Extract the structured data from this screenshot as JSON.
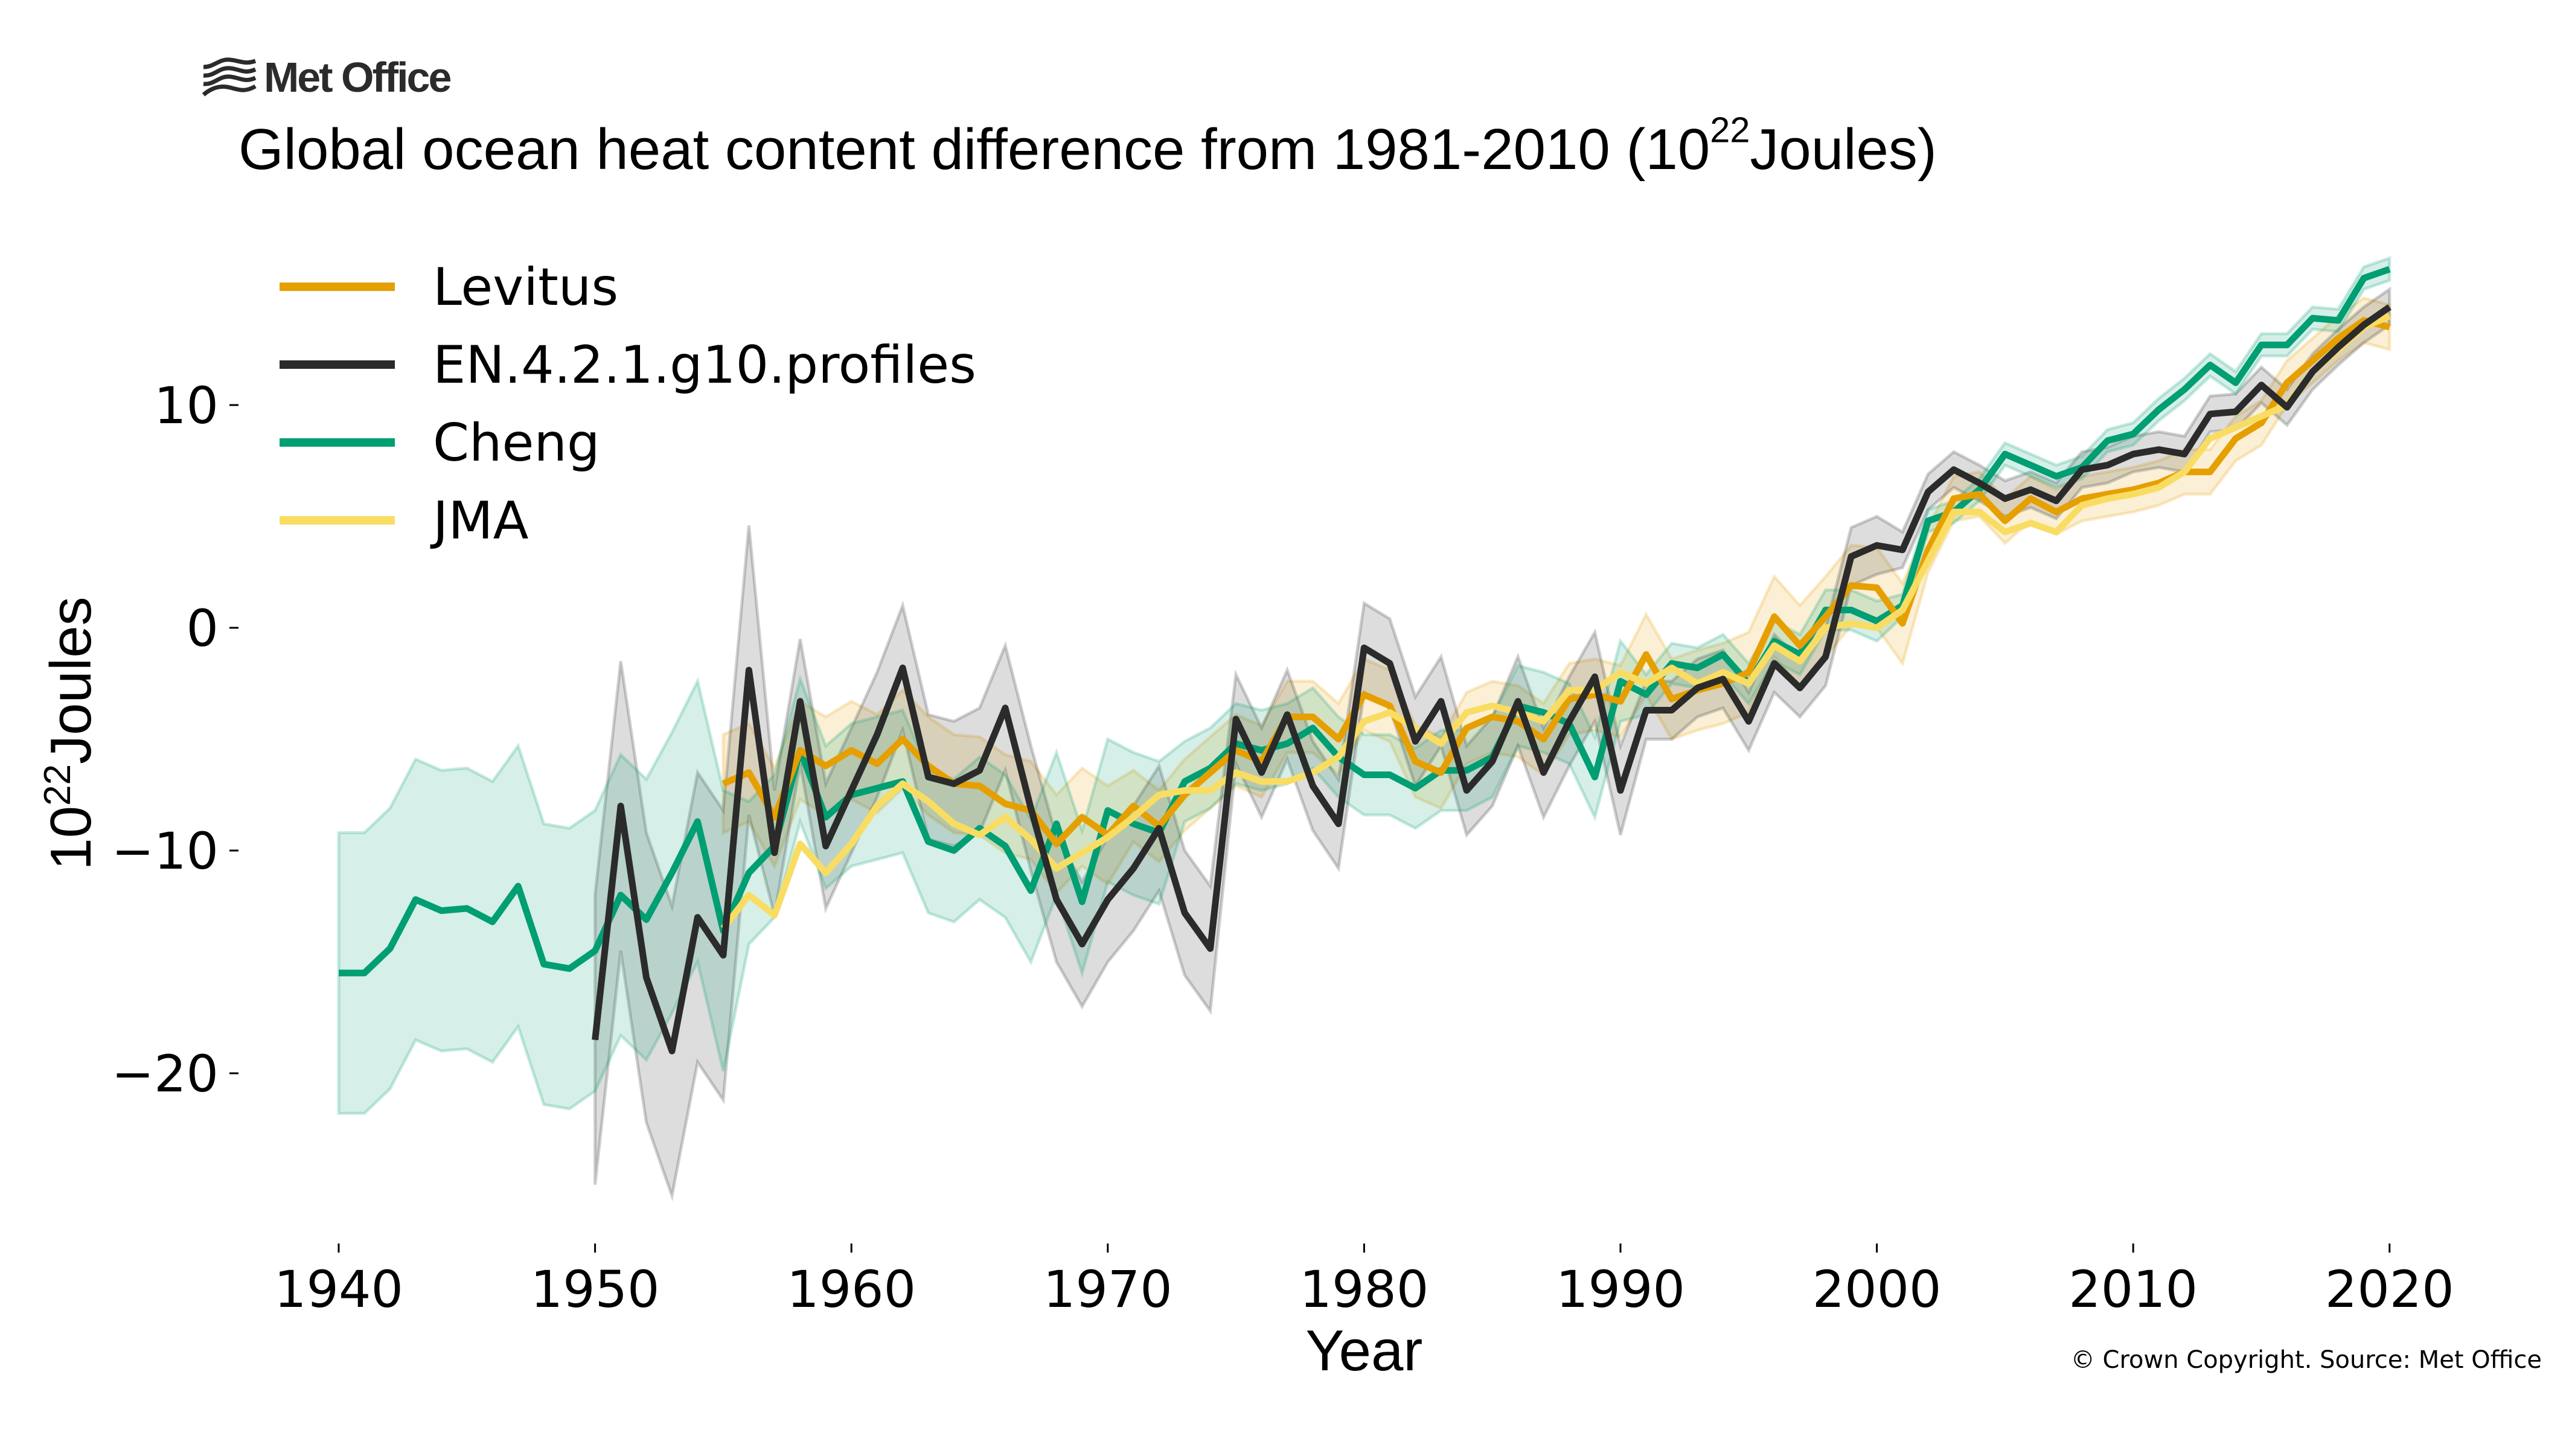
{
  "header": {
    "logo_text": "Met Office",
    "logo_icon": "met-office-waves-icon",
    "title_prefix": "Global ocean heat content difference from 1981-2010 (10",
    "title_exponent": "22",
    "title_suffix": "Joules)"
  },
  "footer": {
    "copyright": "© Crown Copyright. Source: Met Office"
  },
  "chart_data": {
    "type": "line",
    "title": "Global ocean heat content difference from 1981-2010 (10^22 Joules)",
    "xlabel": "Year",
    "ylabel_base": "10",
    "ylabel_exponent": "22",
    "ylabel_suffix": "Joules",
    "xlim": [
      1937,
      2023
    ],
    "ylim": [
      -27.5,
      17.5
    ],
    "xticks": [
      1940,
      1950,
      1960,
      1970,
      1980,
      1990,
      2000,
      2010,
      2020
    ],
    "xtick_labels": [
      "1940",
      "1950",
      "1960",
      "1970",
      "1980",
      "1990",
      "2000",
      "2010",
      "2020"
    ],
    "yticks": [
      10,
      0,
      -10,
      -20
    ],
    "ytick_labels": [
      "10",
      "0",
      "−10",
      "−20"
    ],
    "grid": false,
    "legend_position": "top-left",
    "series": [
      {
        "name": "Levitus",
        "color": "#e69f00",
        "start_year": 1955,
        "values": [
          -7.0,
          -6.5,
          -8.5,
          -5.5,
          -6.2,
          -5.5,
          -6.1,
          -5.0,
          -6.2,
          -7.0,
          -7.1,
          -7.9,
          -8.2,
          -9.7,
          -8.5,
          -9.3,
          -8.0,
          -8.9,
          -7.5,
          -6.5,
          -5.5,
          -6.0,
          -4.0,
          -4.0,
          -5.0,
          -3.0,
          -3.5,
          -6.0,
          -6.5,
          -4.5,
          -4.0,
          -4.2,
          -5.0,
          -3.2,
          -3.0,
          -3.3,
          -1.2,
          -3.2,
          -2.8,
          -2.5,
          -2.0,
          0.5,
          -0.8,
          0.5,
          1.9,
          1.8,
          0.2,
          3.5,
          5.8,
          6.0,
          4.8,
          5.8,
          5.2,
          5.8,
          6.0,
          6.2,
          6.5,
          7.0,
          7.0,
          8.5,
          9.2,
          11.0,
          12.0,
          13.0,
          13.8,
          13.5
        ],
        "uncertainty": [
          [
            1955,
            1970,
            2.2
          ],
          [
            1971,
            1990,
            1.6
          ],
          [
            1991,
            2001,
            1.8
          ],
          [
            2002,
            2020,
            1.0
          ]
        ]
      },
      {
        "name": "EN.4.2.1.g10.profiles",
        "color": "#2b2b2b",
        "start_year": 1950,
        "values": [
          -18.5,
          -8.0,
          -15.7,
          -19.0,
          -13.0,
          -14.7,
          -1.9,
          -10.1,
          -3.3,
          -9.8,
          -7.3,
          -4.8,
          -1.8,
          -6.7,
          -7.0,
          -6.4,
          -3.6,
          -8.1,
          -12.2,
          -14.2,
          -12.2,
          -10.8,
          -9.0,
          -12.8,
          -14.4,
          -4.1,
          -6.5,
          -3.9,
          -7.1,
          -8.8,
          -0.9,
          -1.6,
          -5.1,
          -3.3,
          -7.3,
          -6.0,
          -3.3,
          -6.5,
          -4.2,
          -2.2,
          -7.3,
          -3.7,
          -3.7,
          -2.7,
          -2.3,
          -4.2,
          -1.6,
          -2.7,
          -1.3,
          3.2,
          3.7,
          3.5,
          6.1,
          7.1,
          6.5,
          5.8,
          6.2,
          5.7,
          7.1,
          7.3,
          7.8,
          8.0,
          7.8,
          9.6,
          9.7,
          10.9,
          9.9,
          11.5,
          12.6,
          13.6,
          14.4
        ],
        "uncertainty": [
          [
            1950,
            1956,
            6.5
          ],
          [
            1957,
            1974,
            2.8
          ],
          [
            1975,
            1990,
            2.0
          ],
          [
            1991,
            2000,
            1.3
          ],
          [
            2001,
            2020,
            0.8
          ]
        ]
      },
      {
        "name": "Cheng",
        "color": "#009e73",
        "start_year": 1940,
        "values": [
          -15.5,
          -15.5,
          -14.4,
          -12.2,
          -12.7,
          -12.6,
          -13.2,
          -11.6,
          -15.1,
          -15.3,
          -14.5,
          -12.0,
          -13.1,
          -11.0,
          -8.7,
          -13.6,
          -11.0,
          -9.8,
          -5.5,
          -8.5,
          -7.5,
          -7.2,
          -6.9,
          -9.6,
          -10.0,
          -9.0,
          -9.8,
          -11.8,
          -8.8,
          -12.3,
          -8.2,
          -8.8,
          -9.2,
          -6.9,
          -6.3,
          -5.2,
          -5.5,
          -5.2,
          -4.5,
          -5.8,
          -6.6,
          -6.6,
          -7.2,
          -6.4,
          -6.4,
          -5.8,
          -3.5,
          -3.8,
          -4.3,
          -6.7,
          -2.4,
          -3.0,
          -1.6,
          -1.8,
          -1.2,
          -2.5,
          -0.6,
          -1.2,
          0.8,
          0.8,
          0.3,
          1.0,
          4.8,
          5.2,
          6.2,
          7.8,
          7.3,
          6.8,
          7.2,
          8.4,
          8.7,
          9.8,
          10.7,
          11.8,
          11.0,
          12.7,
          12.7,
          13.9,
          13.8,
          15.7,
          16.1
        ],
        "uncertainty": [
          [
            1940,
            1955,
            6.3
          ],
          [
            1956,
            1972,
            3.2
          ],
          [
            1973,
            1990,
            1.8
          ],
          [
            1991,
            2000,
            0.9
          ],
          [
            2001,
            2020,
            0.5
          ]
        ]
      },
      {
        "name": "JMA",
        "color": "#f9dd63",
        "start_year": 1955,
        "values": [
          -13.5,
          -12.0,
          -12.9,
          -9.7,
          -11.0,
          -9.7,
          -8.0,
          -7.0,
          -7.8,
          -8.8,
          -9.3,
          -8.5,
          -9.5,
          -10.8,
          -10.1,
          -9.4,
          -8.5,
          -7.5,
          -7.3,
          -7.3,
          -6.5,
          -6.9,
          -6.9,
          -6.5,
          -5.8,
          -4.2,
          -3.8,
          -4.5,
          -5.2,
          -3.8,
          -3.5,
          -3.8,
          -4.2,
          -2.8,
          -2.8,
          -2.0,
          -2.5,
          -1.8,
          -2.5,
          -2.0,
          -2.5,
          -0.8,
          -1.5,
          0.0,
          0.2,
          0.0,
          0.8,
          3.0,
          5.2,
          5.2,
          4.3,
          4.7,
          4.3,
          5.5,
          5.8,
          6.0,
          6.3,
          7.0,
          8.5,
          9.0,
          9.5,
          10.0,
          11.5,
          12.5,
          13.5,
          14.0
        ],
        "uncertainty": []
      }
    ]
  }
}
